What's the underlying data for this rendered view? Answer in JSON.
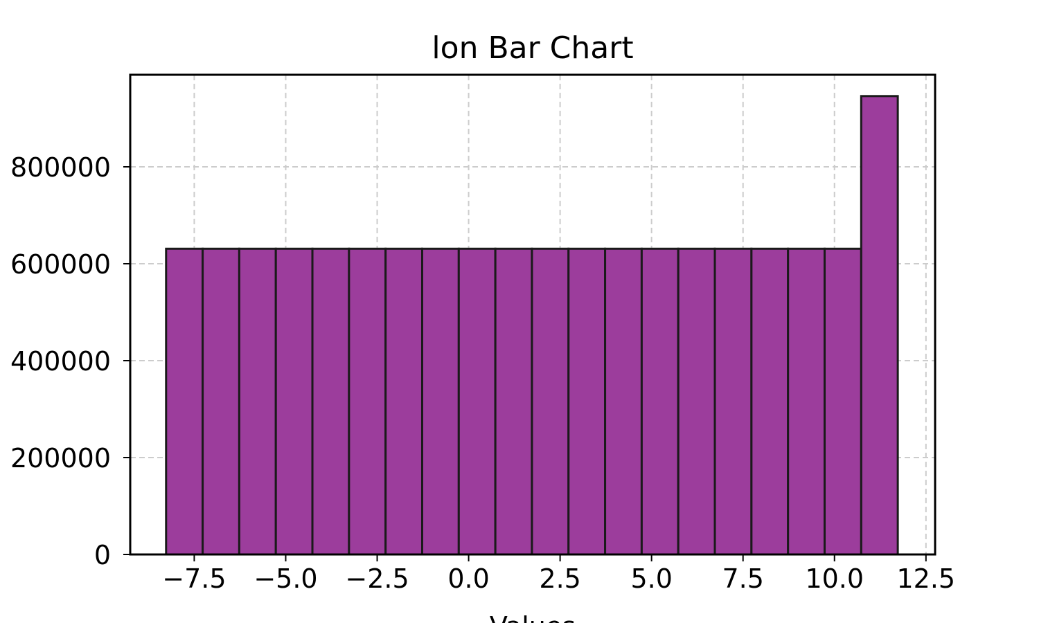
{
  "chart_data": {
    "type": "bar",
    "title": "lon Bar Chart",
    "xlabel": "Values",
    "ylabel": "",
    "bar_color": "#9c3d9c",
    "edge_color": "#1a1a1a",
    "grid": true,
    "xlim": [
      -9.25,
      12.75
    ],
    "ylim": [
      0,
      990000
    ],
    "x_ticks": [
      -7.5,
      -5.0,
      -2.5,
      0.0,
      2.5,
      5.0,
      7.5,
      10.0,
      12.5
    ],
    "x_tick_labels": [
      "−7.5",
      "−5.0",
      "−2.5",
      "0.0",
      "2.5",
      "5.0",
      "7.5",
      "10.0",
      "12.5"
    ],
    "y_ticks": [
      0,
      200000,
      400000,
      600000,
      800000
    ],
    "y_tick_labels": [
      "0",
      "200000",
      "400000",
      "600000",
      "800000"
    ],
    "bin_edges": [
      -8.27,
      -7.27,
      -6.27,
      -5.27,
      -4.27,
      -3.27,
      -2.27,
      -1.27,
      -0.27,
      0.73,
      1.73,
      2.73,
      3.73,
      4.73,
      5.73,
      6.73,
      7.73,
      8.73,
      9.73,
      10.73,
      11.73
    ],
    "values": [
      631000,
      631000,
      631000,
      631000,
      631000,
      631000,
      631000,
      631000,
      631000,
      631000,
      631000,
      631000,
      631000,
      631000,
      631000,
      631000,
      631000,
      631000,
      631000,
      946000
    ]
  }
}
